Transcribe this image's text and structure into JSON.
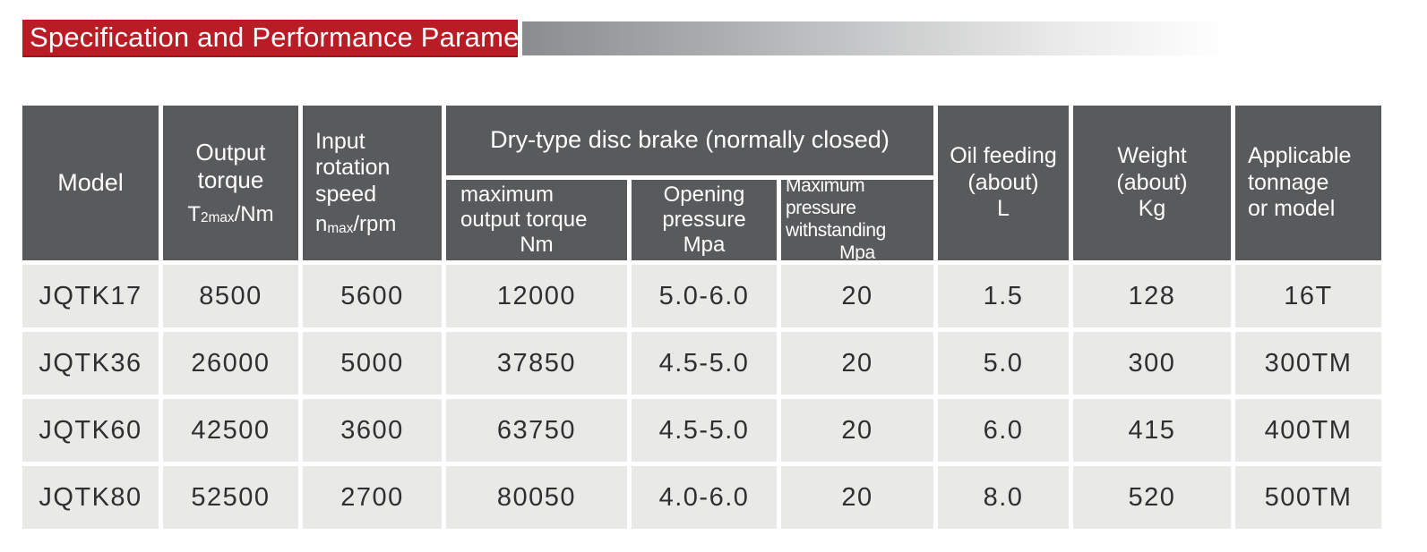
{
  "banner": {
    "title": "Specification and Performance Parameters"
  },
  "colors": {
    "banner_red": "#b91c24",
    "header_gray": "#595a5c",
    "row_gray": "#e9e9e8",
    "gradient_start": "#8a8c8e",
    "gradient_end": "#ffffff"
  },
  "table": {
    "headers": {
      "model": "Model",
      "output_torque": {
        "line1": "Output",
        "line2": "torque",
        "sym_base": "T",
        "sym_sub": "2max",
        "sym_suffix": "/Nm"
      },
      "input_speed": {
        "line1": "Input",
        "line2": "rotation",
        "line3": "speed",
        "sym_base": "n",
        "sym_sub": "max",
        "sym_suffix": "/rpm"
      },
      "brake_group": "Dry-type disc brake (normally closed)",
      "brake_sub1": {
        "line1": "maximum",
        "line2": "output torque",
        "line3": "Nm"
      },
      "brake_sub2": {
        "line1": "Opening",
        "line2": "pressure",
        "line3": "Mpa"
      },
      "brake_sub3": {
        "line1": "Maximum pressure",
        "line2": "withstanding",
        "line3": "Mpa"
      },
      "oil_feeding": {
        "line1": "Oil feeding",
        "line2": "(about)",
        "line3": "L"
      },
      "weight": {
        "line1": "Weight",
        "line2": "(about)",
        "line3": "Kg"
      },
      "applicable": {
        "line1": "Applicable",
        "line2": "tonnage",
        "line3": "or model"
      }
    },
    "rows": [
      {
        "model": "JQTK17",
        "output_torque": "8500",
        "input_speed": "5600",
        "max_output_torque": "12000",
        "opening_pressure": "5.0-6.0",
        "max_pressure": "20",
        "oil_feeding": "1.5",
        "weight": "128",
        "applicable": "16T"
      },
      {
        "model": "JQTK36",
        "output_torque": "26000",
        "input_speed": "5000",
        "max_output_torque": "37850",
        "opening_pressure": "4.5-5.0",
        "max_pressure": "20",
        "oil_feeding": "5.0",
        "weight": "300",
        "applicable": "300TM"
      },
      {
        "model": "JQTK60",
        "output_torque": "42500",
        "input_speed": "3600",
        "max_output_torque": "63750",
        "opening_pressure": "4.5-5.0",
        "max_pressure": "20",
        "oil_feeding": "6.0",
        "weight": "415",
        "applicable": "400TM"
      },
      {
        "model": "JQTK80",
        "output_torque": "52500",
        "input_speed": "2700",
        "max_output_torque": "80050",
        "opening_pressure": "4.0-6.0",
        "max_pressure": "20",
        "oil_feeding": "8.0",
        "weight": "520",
        "applicable": "500TM"
      }
    ]
  }
}
